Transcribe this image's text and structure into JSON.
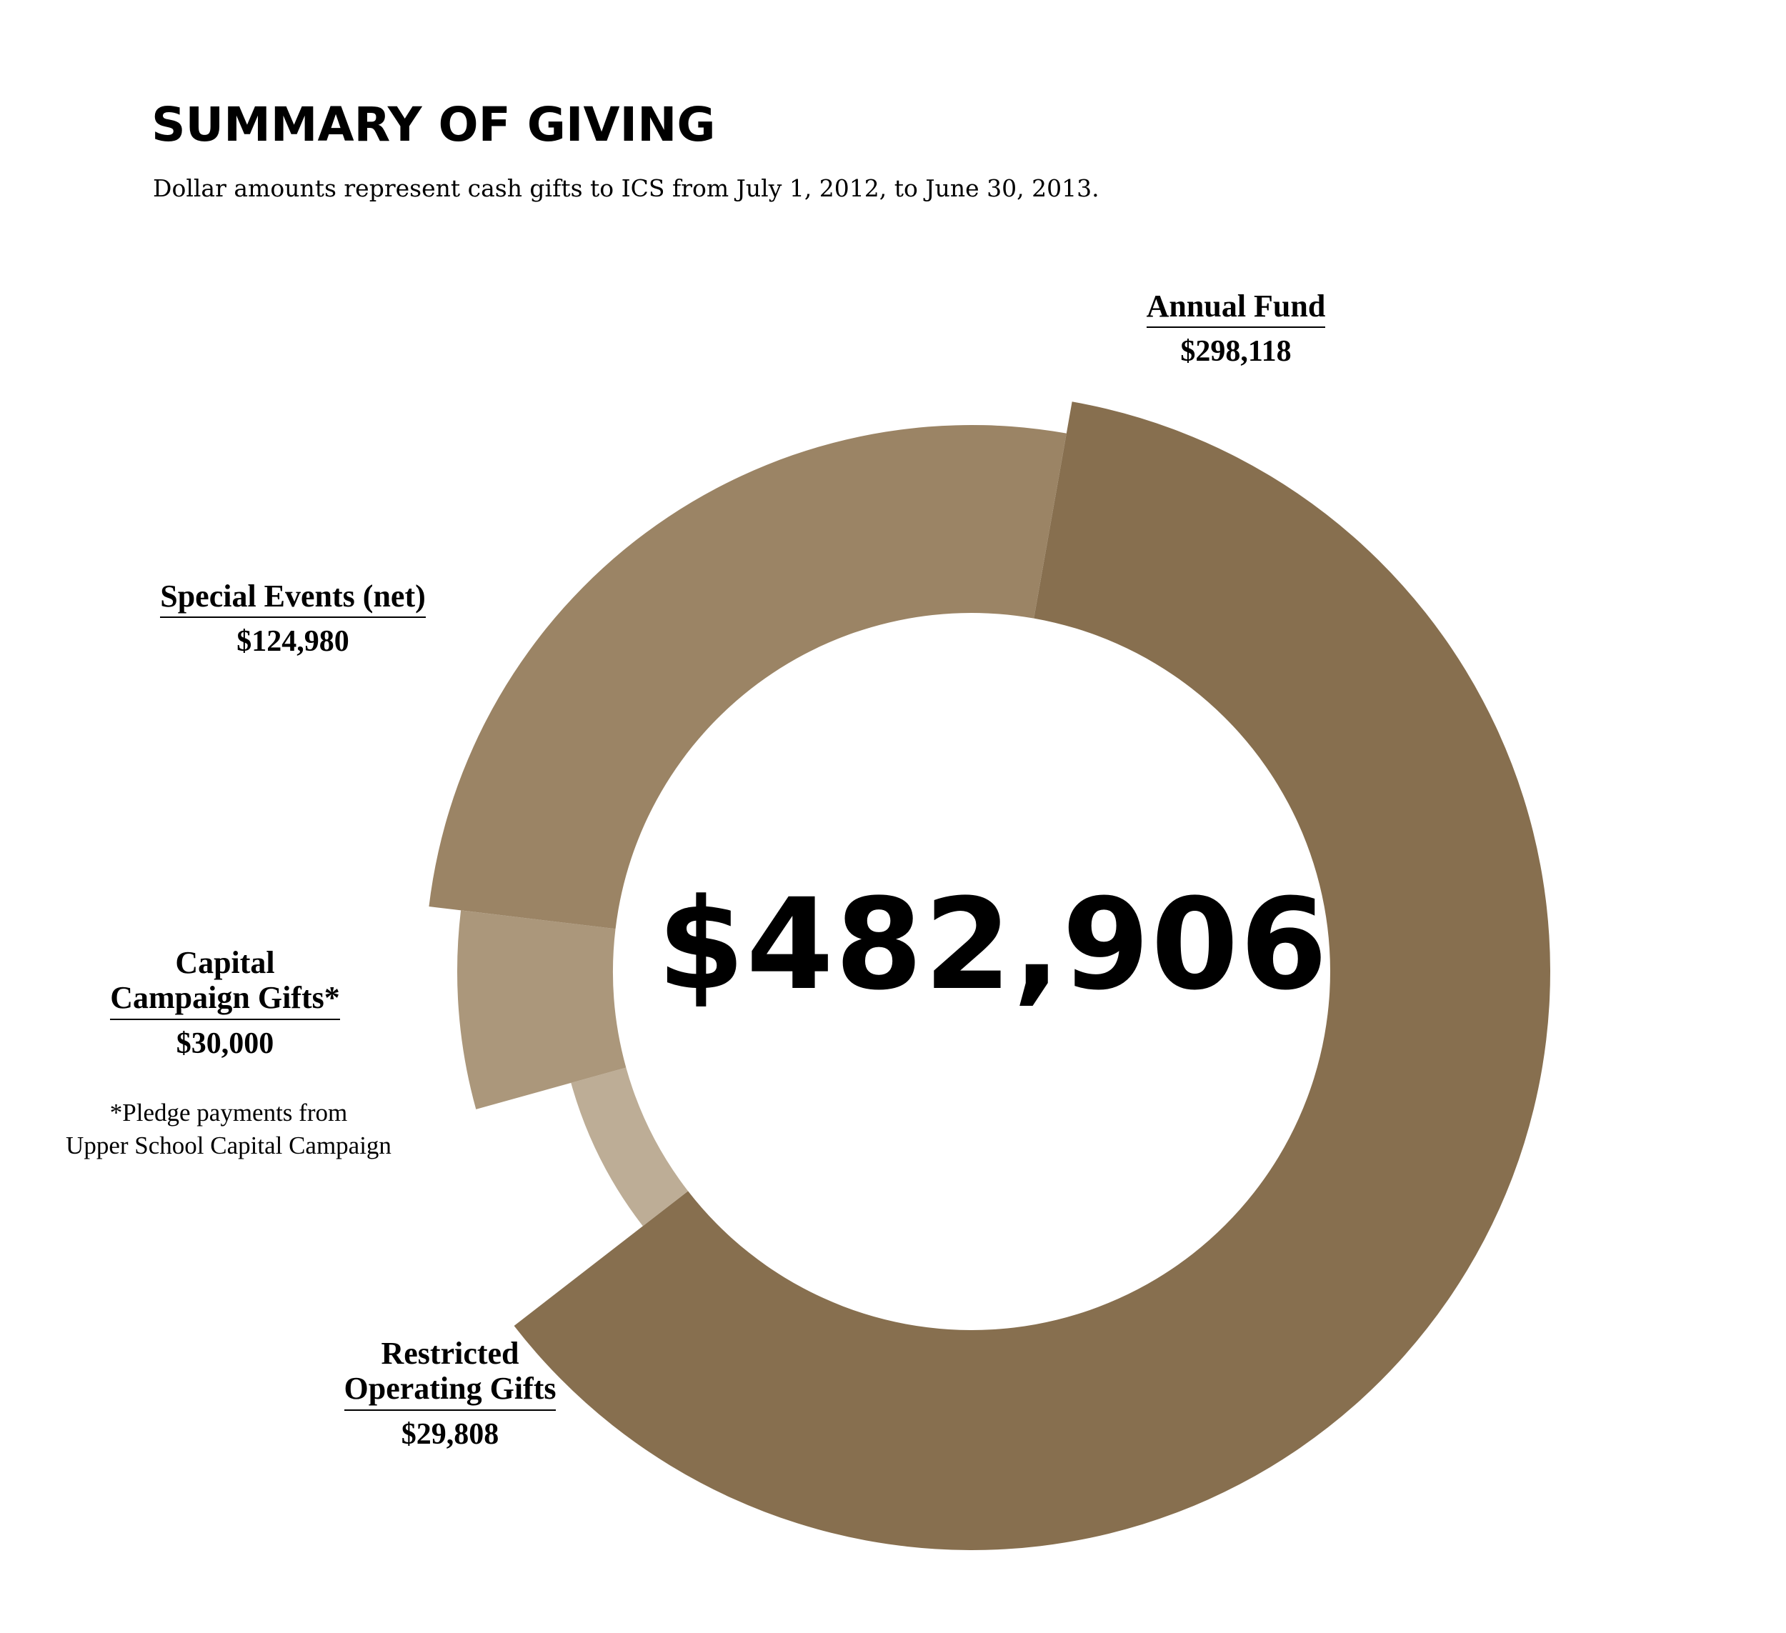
{
  "title": "SUMMARY OF GIVING",
  "subtitle": "Dollar amounts represent cash gifts to ICS from July 1, 2012, to June 30, 2013.",
  "total_label": "$482,906",
  "footnote": {
    "line1": "*Pledge payments from",
    "line2": "Upper School Capital Campaign"
  },
  "chart_data": {
    "type": "pie",
    "style": "donut",
    "total": 482906,
    "slices": [
      {
        "label": "Annual Fund",
        "label_lines": [
          "Annual Fund"
        ],
        "value": 298118,
        "value_label": "$298,118",
        "color": "#876F4F"
      },
      {
        "label": "Restricted Operating Gifts",
        "label_lines": [
          "Restricted",
          "Operating Gifts"
        ],
        "value": 29808,
        "value_label": "$29,808",
        "color": "#BDAD96"
      },
      {
        "label": "Capital Campaign Gifts*",
        "label_lines": [
          "Capital",
          "Campaign Gifts*"
        ],
        "value": 30000,
        "value_label": "$30,000",
        "color": "#AB977B"
      },
      {
        "label": "Special Events (net)",
        "label_lines": [
          "Special Events (net)"
        ],
        "value": 124980,
        "value_label": "$124,980",
        "color": "#9B8465"
      }
    ]
  }
}
